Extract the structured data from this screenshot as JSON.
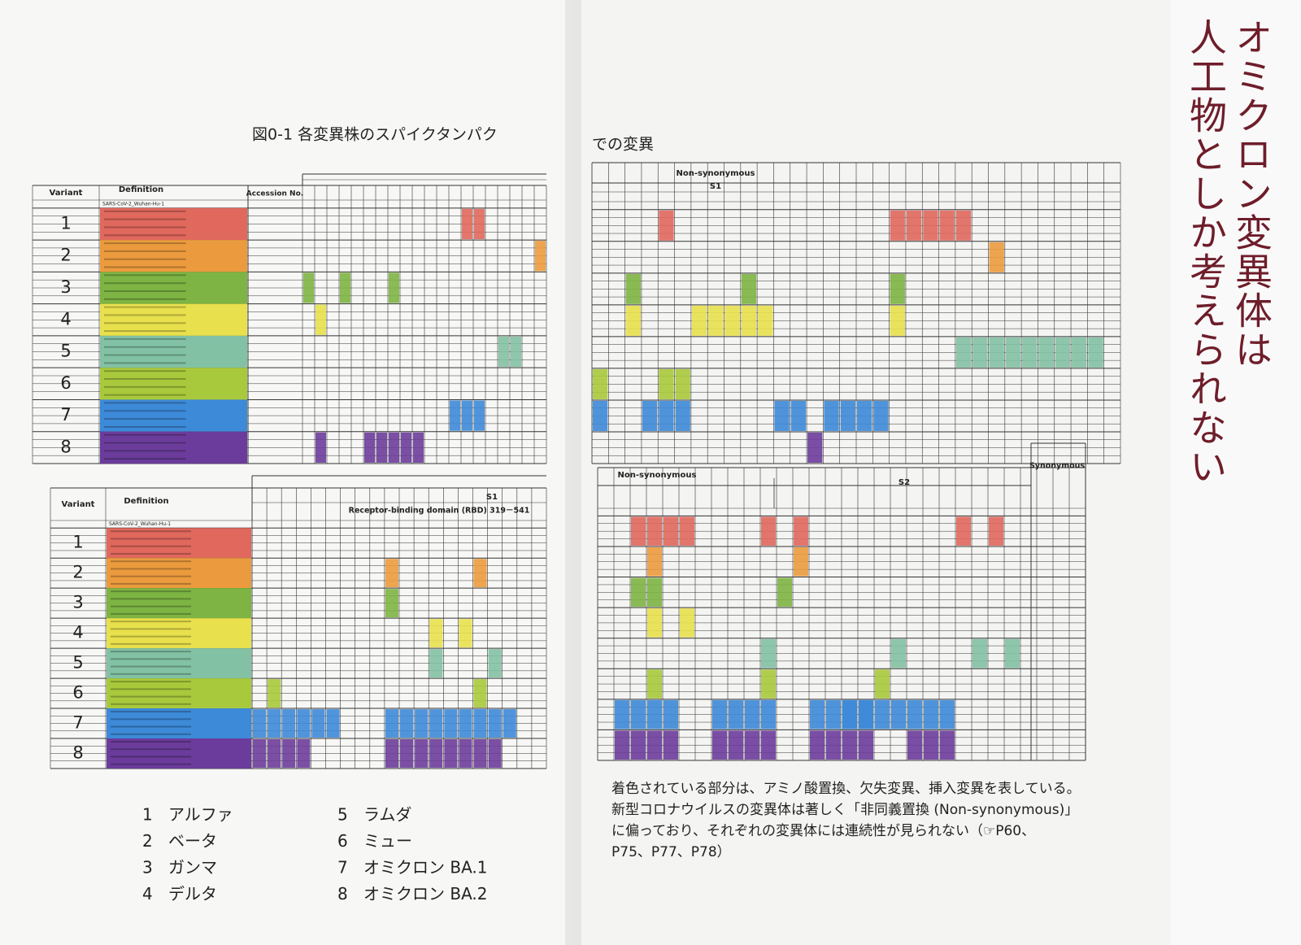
{
  "figure_title": "図0-1 各変異株のスパイクタンパク",
  "figure_title_cont": "での変異",
  "upper_table": {
    "headers": [
      "Variant",
      "Definition",
      "Accession No."
    ],
    "reference": "SARS-CoV-2_Wuhan-Hu-1",
    "variants": [
      "1",
      "2",
      "3",
      "4",
      "5",
      "6",
      "7",
      "8"
    ]
  },
  "upper_right": {
    "group": "Non-synonymous",
    "region": "S1"
  },
  "lower_table": {
    "headers": [
      "Variant",
      "Definition"
    ],
    "reference": "SARS-CoV-2_Wuhan-Hu-1",
    "region": "S1",
    "rbd": "Receptor-binding domain (RBD)  319－541",
    "variants": [
      "1",
      "2",
      "3",
      "4",
      "5",
      "6",
      "7",
      "8"
    ]
  },
  "lower_right": {
    "group": "Non-synonymous",
    "region": "S2",
    "synonymous": "Synonymous"
  },
  "legend": [
    {
      "number": "1",
      "name": "アルファ"
    },
    {
      "number": "2",
      "name": "ベータ"
    },
    {
      "number": "3",
      "name": "ガンマ"
    },
    {
      "number": "4",
      "name": "デルタ"
    },
    {
      "number": "5",
      "name": "ラムダ"
    },
    {
      "number": "6",
      "name": "ミュー"
    },
    {
      "number": "7",
      "name": "オミクロン BA.1"
    },
    {
      "number": "8",
      "name": "オミクロン BA.2"
    }
  ],
  "caption": [
    "着色されている部分は、アミノ酸置換、欠失変異、挿入変異を表している。",
    "新型コロナウイルスの変異体は著しく「非同義置換 (Non-synonymous)」",
    "に偏っており、それぞれの変異体には連続性が見られない（☞P60、",
    "P75、P77、P78）"
  ],
  "side_title": [
    "オミクロン変異体は",
    "人工物としか考えられない"
  ]
}
